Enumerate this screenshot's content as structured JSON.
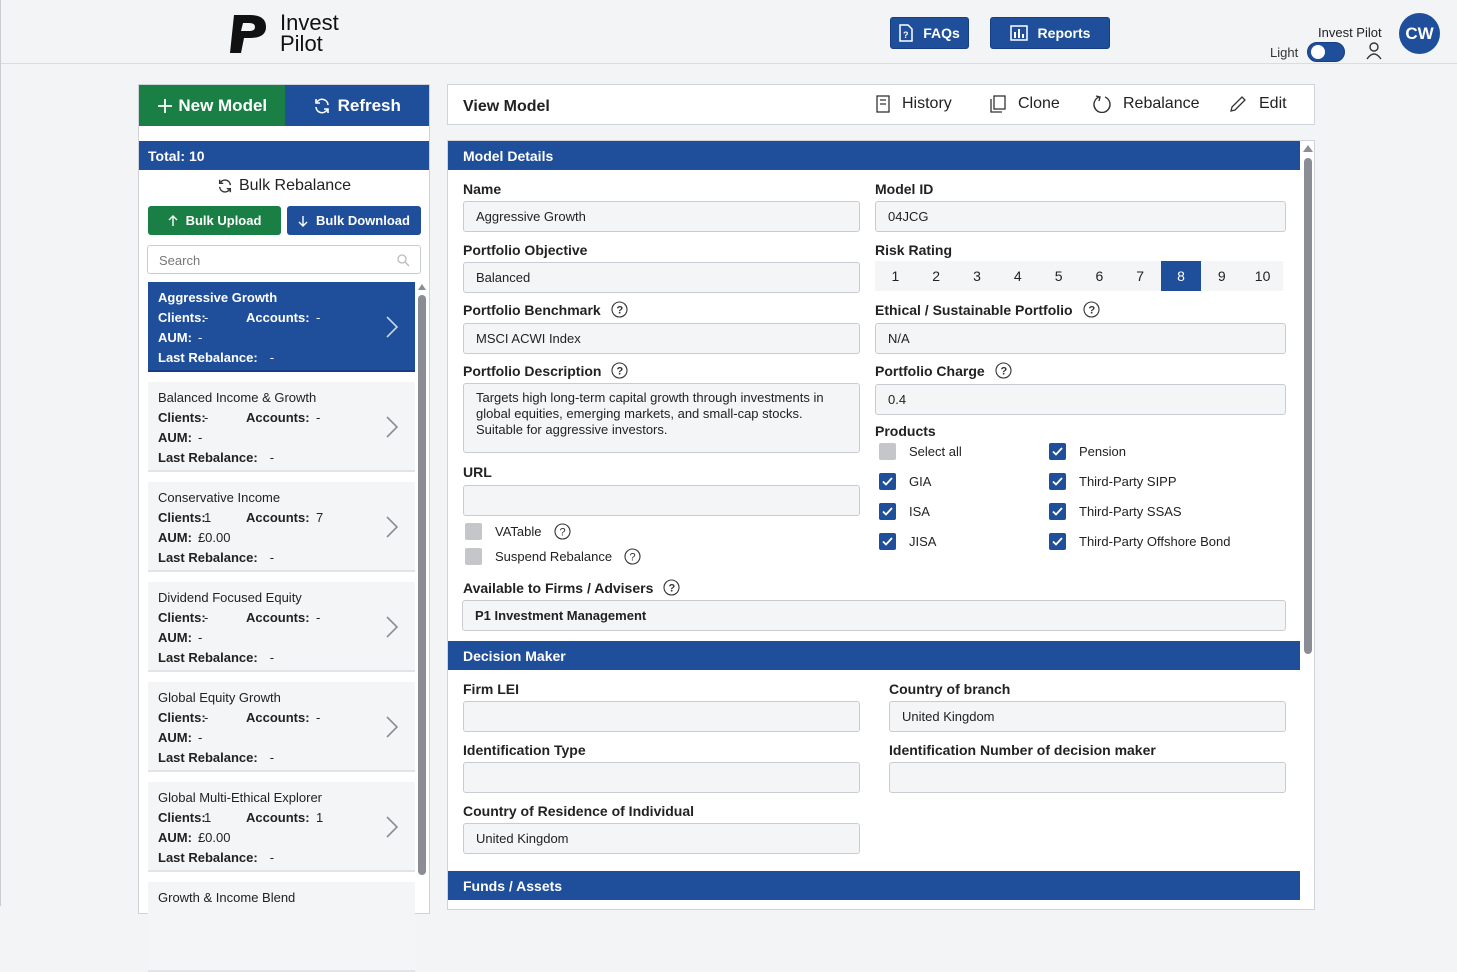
{
  "header": {
    "logo_line1": "Invest",
    "logo_line2": "Pilot",
    "faqs_label": "FAQs",
    "reports_label": "Reports",
    "user_name": "Invest Pilot",
    "theme_label": "Light",
    "avatar_initials": "CW"
  },
  "sidebar": {
    "new_model_label": "New Model",
    "refresh_label": "Refresh",
    "total_label": "Total: 10",
    "bulk_rebalance_label": "Bulk Rebalance",
    "bulk_upload_label": "Bulk Upload",
    "bulk_download_label": "Bulk Download",
    "search_placeholder": "Search",
    "labels": {
      "clients": "Clients:",
      "accounts": "Accounts:",
      "aum": "AUM:",
      "last_rebalance": "Last Rebalance:"
    },
    "models": [
      {
        "name": "Aggressive Growth",
        "clients": "-",
        "accounts": "-",
        "aum": "-",
        "last_rebalance": "-",
        "active": true
      },
      {
        "name": "Balanced Income & Growth",
        "clients": "-",
        "accounts": "-",
        "aum": "-",
        "last_rebalance": "-"
      },
      {
        "name": "Conservative Income",
        "clients": "1",
        "accounts": "7",
        "aum": "£0.00",
        "last_rebalance": "-"
      },
      {
        "name": "Dividend Focused Equity",
        "clients": "-",
        "accounts": "-",
        "aum": "-",
        "last_rebalance": "-"
      },
      {
        "name": "Global Equity Growth",
        "clients": "-",
        "accounts": "-",
        "aum": "-",
        "last_rebalance": "-"
      },
      {
        "name": "Global Multi-Ethical Explorer",
        "clients": "1",
        "accounts": "1",
        "aum": "£0.00",
        "last_rebalance": "-"
      },
      {
        "name": "Growth & Income Blend",
        "clients": "",
        "accounts": "",
        "aum": "",
        "last_rebalance": ""
      }
    ]
  },
  "view": {
    "title": "View Model",
    "history_label": "History",
    "clone_label": "Clone",
    "rebalance_label": "Rebalance",
    "edit_label": "Edit"
  },
  "model_details": {
    "section_title": "Model Details",
    "name_label": "Name",
    "name_value": "Aggressive Growth",
    "model_id_label": "Model ID",
    "model_id_value": "04JCG",
    "objective_label": "Portfolio Objective",
    "objective_value": "Balanced",
    "risk_rating_label": "Risk Rating",
    "risk_options": [
      "1",
      "2",
      "3",
      "4",
      "5",
      "6",
      "7",
      "8",
      "9",
      "10"
    ],
    "risk_selected": "8",
    "benchmark_label": "Portfolio Benchmark",
    "benchmark_value": "MSCI ACWI Index",
    "ethical_label": "Ethical / Sustainable Portfolio",
    "ethical_value": "N/A",
    "description_label": "Portfolio Description",
    "description_value": "Targets high long-term capital growth through investments in global equities, emerging markets, and small-cap stocks. Suitable for aggressive investors.",
    "charge_label": "Portfolio Charge",
    "charge_value": "0.4",
    "products_label": "Products",
    "products": {
      "select_all": "Select all",
      "gia": "GIA",
      "isa": "ISA",
      "jisa": "JISA",
      "pension": "Pension",
      "third_party_sipp": "Third-Party SIPP",
      "third_party_ssas": "Third-Party SSAS",
      "third_party_offshore_bond": "Third-Party Offshore Bond"
    },
    "url_label": "URL",
    "url_value": "",
    "vatable_label": "VATable",
    "suspend_rebalance_label": "Suspend Rebalance",
    "available_label": "Available to Firms / Advisers",
    "available_value": "P1 Investment Management"
  },
  "decision_maker": {
    "section_title": "Decision Maker",
    "firm_lei_label": "Firm LEI",
    "firm_lei_value": "",
    "country_branch_label": "Country of branch",
    "country_branch_value": "United Kingdom",
    "id_type_label": "Identification Type",
    "id_type_value": "",
    "id_number_label": "Identification Number of decision maker",
    "id_number_value": "",
    "residence_label": "Country of Residence of Individual",
    "residence_value": "United Kingdom"
  },
  "funds": {
    "section_title": "Funds / Assets"
  },
  "colors": {
    "primary": "#1f4e9a",
    "success": "#1a7f44"
  }
}
